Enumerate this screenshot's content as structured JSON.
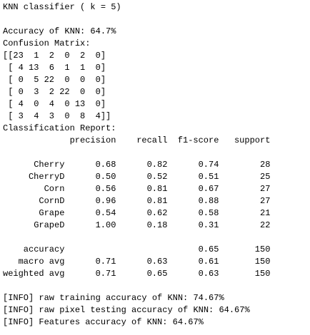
{
  "title": "KNN classifier ( k = 5)",
  "accuracy_line": "Accuracy of KNN: 64.7%",
  "confusion_label": "Confusion Matrix:",
  "confusion_rows": [
    "[[23  1  2  0  2  0]",
    " [ 4 13  6  1  1  0]",
    " [ 0  5 22  0  0  0]",
    " [ 0  3  2 22  0  0]",
    " [ 4  0  4  0 13  0]",
    " [ 3  4  3  0  8  4]]"
  ],
  "report_label": "Classification Report:",
  "report": {
    "headers": [
      "precision",
      "recall",
      "f1-score",
      "support"
    ],
    "class_rows": [
      {
        "label": "Cherry",
        "values": [
          "0.68",
          "0.82",
          "0.74",
          "28"
        ]
      },
      {
        "label": "CherryD",
        "values": [
          "0.50",
          "0.52",
          "0.51",
          "25"
        ]
      },
      {
        "label": "Corn",
        "values": [
          "0.56",
          "0.81",
          "0.67",
          "27"
        ]
      },
      {
        "label": "CornD",
        "values": [
          "0.96",
          "0.81",
          "0.88",
          "27"
        ]
      },
      {
        "label": "Grape",
        "values": [
          "0.54",
          "0.62",
          "0.58",
          "21"
        ]
      },
      {
        "label": "GrapeD",
        "values": [
          "1.00",
          "0.18",
          "0.31",
          "22"
        ]
      }
    ],
    "summary_rows": [
      {
        "label": "accuracy",
        "values": [
          null,
          null,
          "0.65",
          "150"
        ]
      },
      {
        "label": "macro avg",
        "values": [
          "0.71",
          "0.63",
          "0.61",
          "150"
        ]
      },
      {
        "label": "weighted avg",
        "values": [
          "0.71",
          "0.65",
          "0.63",
          "150"
        ]
      }
    ]
  },
  "info_lines": [
    "[INFO] raw training accuracy of KNN: 74.67%",
    "[INFO] raw pixel testing accuracy of KNN: 64.67%",
    "[INFO] Features accuracy of KNN: 64.67%"
  ]
}
